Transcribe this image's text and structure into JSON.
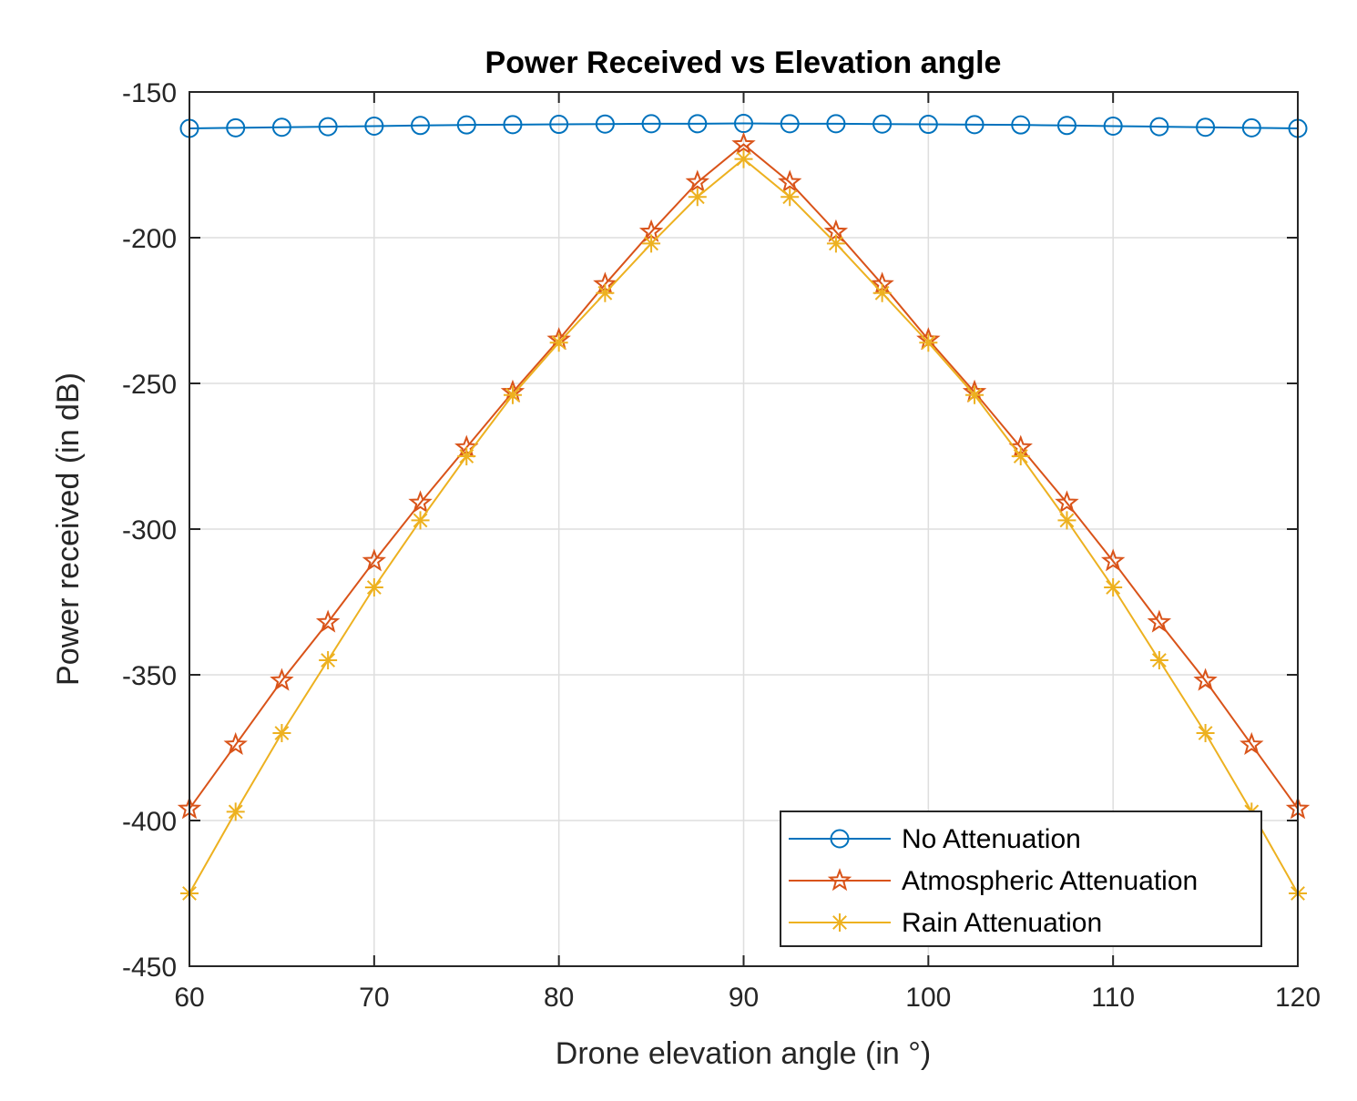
{
  "chart_data": {
    "type": "line",
    "title": "Power Received vs Elevation angle",
    "xlabel": "Drone elevation angle (in °)",
    "ylabel": "Power received (in dB)",
    "xlim": [
      60,
      120
    ],
    "ylim": [
      -450,
      -150
    ],
    "xticks": [
      60,
      70,
      80,
      90,
      100,
      110,
      120
    ],
    "yticks": [
      -150,
      -200,
      -250,
      -300,
      -350,
      -400,
      -450
    ],
    "xtick_labels": [
      "60",
      "70",
      "80",
      "90",
      "100",
      "110",
      "120"
    ],
    "ytick_labels": [
      "-150",
      "-200",
      "-250",
      "-300",
      "-350",
      "-400",
      "-450"
    ],
    "grid": true,
    "legend_position": "bottom-right",
    "x": [
      60,
      62.5,
      65,
      67.5,
      70,
      72.5,
      75,
      77.5,
      80,
      82.5,
      85,
      87.5,
      90,
      92.5,
      95,
      97.5,
      100,
      102.5,
      105,
      107.5,
      110,
      112.5,
      115,
      117.5,
      120
    ],
    "series": [
      {
        "name": "No Attenuation",
        "color": "#0072BD",
        "marker": "circle",
        "values": [
          -162.5,
          -162.3,
          -162.1,
          -161.9,
          -161.7,
          -161.5,
          -161.3,
          -161.2,
          -161.1,
          -161.0,
          -160.9,
          -160.9,
          -160.8,
          -160.9,
          -160.9,
          -161.0,
          -161.1,
          -161.2,
          -161.3,
          -161.5,
          -161.7,
          -161.9,
          -162.1,
          -162.3,
          -162.5
        ]
      },
      {
        "name": "Atmospheric Attenuation",
        "color": "#D95319",
        "marker": "star",
        "values": [
          -396,
          -374,
          -352,
          -332,
          -311,
          -291,
          -272,
          -253,
          -235,
          -216,
          -198,
          -181,
          -168,
          -181,
          -198,
          -216,
          -235,
          -253,
          -272,
          -291,
          -311,
          -332,
          -352,
          -374,
          -396
        ]
      },
      {
        "name": "Rain Attenuation",
        "color": "#EDB120",
        "marker": "asterisk",
        "values": [
          -425,
          -397,
          -370,
          -345,
          -320,
          -297,
          -275,
          -254,
          -236,
          -219,
          -202,
          -186,
          -173,
          -186,
          -202,
          -219,
          -236,
          -254,
          -275,
          -297,
          -320,
          -345,
          -370,
          -397,
          -425
        ]
      }
    ]
  }
}
